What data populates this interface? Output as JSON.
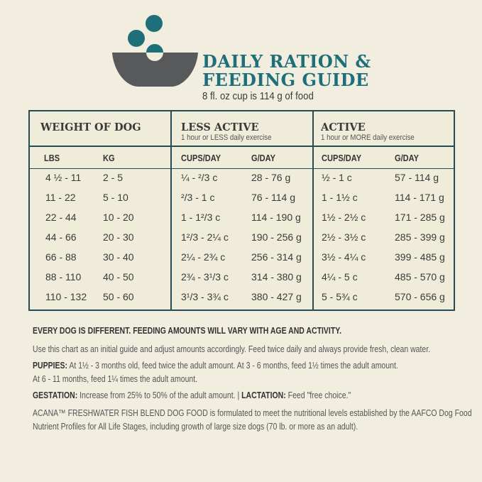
{
  "header": {
    "title_line1": "DAILY RATION &",
    "title_line2": "FEEDING GUIDE",
    "subtitle": "8 fl. oz cup is 114 g of food",
    "icon": "bowl-with-kibble-icon"
  },
  "colors": {
    "teal": "#1e6f79",
    "bowl": "#58595b",
    "border": "#234d52",
    "background": "#f1eedf"
  },
  "table": {
    "groups": [
      {
        "title": "WEIGHT OF DOG",
        "subtitle": ""
      },
      {
        "title": "LESS ACTIVE",
        "subtitle": "1 hour or LESS daily exercise"
      },
      {
        "title": "ACTIVE",
        "subtitle": "1 hour or MORE daily exercise"
      }
    ],
    "columns": [
      "LBS",
      "KG",
      "CUPS/DAY",
      "G/DAY",
      "CUPS/DAY",
      "G/DAY"
    ],
    "rows": [
      [
        "4 ½ - 11",
        "2 - 5",
        "¼ - ²/3 c",
        "28 - 76 g",
        "½ - 1 c",
        "57 - 114 g"
      ],
      [
        "11 - 22",
        "5 - 10",
        "²/3 - 1 c",
        "76 - 114 g",
        "1 - 1½ c",
        "114 - 171 g"
      ],
      [
        "22 - 44",
        "10 - 20",
        "1 - 1²/3 c",
        "114 - 190 g",
        "1½ - 2½ c",
        "171 - 285 g"
      ],
      [
        "44 - 66",
        "20 - 30",
        "1²/3 - 2¼ c",
        "190 - 256 g",
        "2½ - 3½ c",
        "285 - 399 g"
      ],
      [
        "66 - 88",
        "30 - 40",
        "2¼ - 2¾ c",
        "256 - 314 g",
        "3½ - 4¼ c",
        "399 - 485 g"
      ],
      [
        "88 - 110",
        "40 - 50",
        "2¾ - 3¹/3 c",
        "314 - 380 g",
        "4¼ - 5 c",
        "485 - 570 g"
      ],
      [
        "110 - 132",
        "50 - 60",
        "3¹/3 - 3¾ c",
        "380 - 427 g",
        "5 - 5¾ c",
        "570 - 656 g"
      ]
    ]
  },
  "notes": {
    "heading": "EVERY DOG IS DIFFERENT. FEEDING AMOUNTS WILL VARY WITH AGE AND ACTIVITY.",
    "general": "Use this chart as an initial guide and adjust amounts accordingly. Feed twice daily and always provide fresh, clean water.",
    "puppies_label": "PUPPIES:",
    "puppies_text1": " At 1½ - 3 months old, feed twice the adult amount. At 3 - 6 months, feed 1½ times the adult amount.",
    "puppies_text2": "At 6 - 11 months, feed 1¼ times the adult amount.",
    "gestation_label": "GESTATION:",
    "gestation_text": " Increase from 25% to 50% of the adult amount. | ",
    "lactation_label": "LACTATION:",
    "lactation_text": " Feed \"free choice.\"",
    "aafco_line1": "ACANA™ FRESHWATER FISH BLEND DOG FOOD is formulated to meet the nutritional levels established by the AAFCO Dog Food",
    "aafco_line2": "Nutrient Profiles for All Life Stages, including growth of large size dogs (70 lb. or more as an adult)."
  }
}
